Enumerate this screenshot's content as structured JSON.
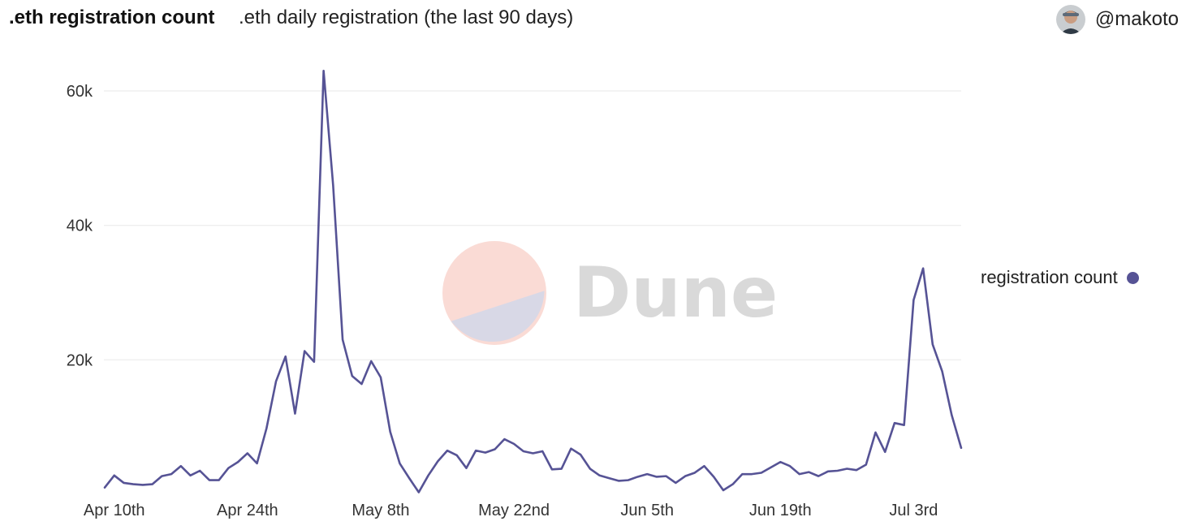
{
  "header": {
    "title": ".eth registration count",
    "subtitle": ".eth daily registration (the last 90 days)",
    "author": "@makoto",
    "avatar_icon": "user-avatar"
  },
  "watermark": {
    "text": "Dune",
    "top_color": "#fadbd5",
    "bottom_color": "#d8d8e6",
    "text_color": "#d9d9d9"
  },
  "chart_data": {
    "type": "line",
    "title": ".eth registration count",
    "subtitle": ".eth daily registration (the last 90 days)",
    "xlabel": "",
    "ylabel": "",
    "ylim": [
      0,
      62000
    ],
    "yticks": [
      20000,
      40000,
      60000
    ],
    "ytick_labels": [
      "20k",
      "40k",
      "60k"
    ],
    "xticks": [
      {
        "index": 1,
        "label": "Apr 10th"
      },
      {
        "index": 15,
        "label": "Apr 24th"
      },
      {
        "index": 29,
        "label": "May 8th"
      },
      {
        "index": 43,
        "label": "May 22nd"
      },
      {
        "index": 57,
        "label": "Jun 5th"
      },
      {
        "index": 71,
        "label": "Jun 19th"
      },
      {
        "index": 85,
        "label": "Jul 3rd"
      }
    ],
    "grid": true,
    "legend_position": "right",
    "series": [
      {
        "name": "registration count",
        "color": "#565395",
        "values": [
          1000,
          2800,
          1700,
          1500,
          1400,
          1500,
          2700,
          3000,
          4200,
          2800,
          3500,
          2100,
          2100,
          3900,
          4800,
          6100,
          4600,
          9800,
          16800,
          20500,
          12000,
          21300,
          19700,
          63000,
          46000,
          23000,
          17600,
          16400,
          19800,
          17400,
          9300,
          4600,
          2400,
          300,
          2800,
          4900,
          6500,
          5800,
          3900,
          6500,
          6200,
          6700,
          8200,
          7500,
          6400,
          6100,
          6400,
          3700,
          3800,
          6800,
          5900,
          3800,
          2800,
          2400,
          2000,
          2100,
          2600,
          3000,
          2600,
          2700,
          1700,
          2700,
          3200,
          4200,
          2600,
          600,
          1500,
          3000,
          3000,
          3200,
          4000,
          4800,
          4200,
          3000,
          3300,
          2700,
          3400,
          3500,
          3800,
          3600,
          4400,
          9200,
          6300,
          10600,
          10300,
          28900,
          33600,
          22300,
          18300,
          11800,
          6900
        ]
      }
    ]
  }
}
